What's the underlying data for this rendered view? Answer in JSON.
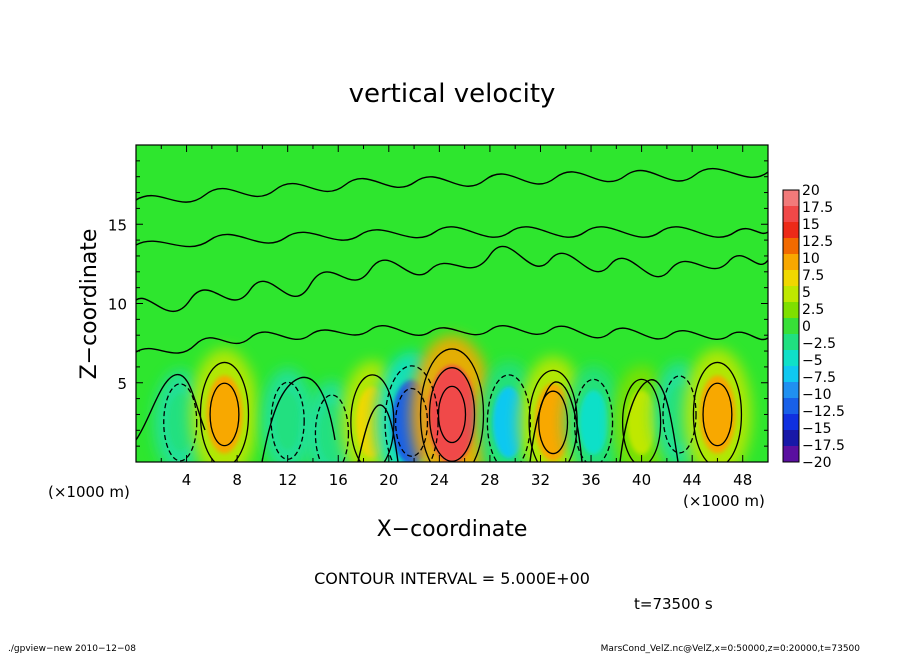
{
  "chart_data": {
    "type": "heatmap",
    "title": "vertical velocity",
    "xlabel": "X−coordinate",
    "ylabel": "Z−coordinate",
    "x_unit_left": "(×1000 m)",
    "x_unit_right": "(×1000 m)",
    "xlim": [
      0,
      50
    ],
    "ylim": [
      0,
      20
    ],
    "x_ticks": [
      4,
      8,
      12,
      16,
      20,
      24,
      28,
      32,
      36,
      40,
      44,
      48
    ],
    "y_ticks": [
      5,
      10,
      15
    ],
    "contour_interval_text": "CONTOUR INTERVAL = 5.000E+00",
    "time_text": "t=73500 s",
    "footer_left": "./gpview−new   2010−12−08",
    "footer_right": "MarsCond_VelZ.nc@VelZ,x=0:50000,z=0:20000,t=73500",
    "background_color": "#2ee62e",
    "colorbar": {
      "labels": [
        "20",
        "17.5",
        "15",
        "12.5",
        "10",
        "7.5",
        "5",
        "2.5",
        "0",
        "−2.5",
        "−5",
        "−7.5",
        "−10",
        "−12.5",
        "−15",
        "−17.5",
        "−20"
      ],
      "colors": [
        "#f27a7a",
        "#f04848",
        "#ec2a18",
        "#f26a00",
        "#f8a800",
        "#f0d800",
        "#bfe800",
        "#7fe000",
        "#38e038",
        "#20e080",
        "#10e0c8",
        "#10c8f0",
        "#2090f0",
        "#1860e8",
        "#1030e0",
        "#1818a8",
        "#5a10a0"
      ]
    },
    "cells": [
      {
        "x": 3.5,
        "z": 2.5,
        "value": -2.5
      },
      {
        "x": 7.0,
        "z": 3.0,
        "value": 10
      },
      {
        "x": 12.0,
        "z": 2.6,
        "value": -2.5
      },
      {
        "x": 15.5,
        "z": 1.8,
        "value": -2.5
      },
      {
        "x": 18.7,
        "z": 2.5,
        "value": 7.5
      },
      {
        "x": 21.8,
        "z": 2.5,
        "value": -12.5
      },
      {
        "x": 25.0,
        "z": 3.0,
        "value": 17.5
      },
      {
        "x": 29.5,
        "z": 2.5,
        "value": -7.5
      },
      {
        "x": 33.0,
        "z": 2.5,
        "value": 10
      },
      {
        "x": 36.2,
        "z": 2.5,
        "value": -5
      },
      {
        "x": 40.0,
        "z": 2.5,
        "value": 5
      },
      {
        "x": 43.0,
        "z": 3.0,
        "value": -2.5
      },
      {
        "x": 46.0,
        "z": 3.0,
        "value": 10
      }
    ]
  }
}
